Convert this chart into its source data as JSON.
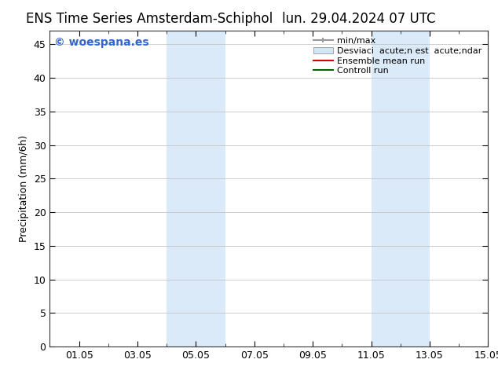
{
  "title_left": "ENS Time Series Amsterdam-Schiphol",
  "title_right": "lun. 29.04.2024 07 UTC",
  "ylabel": "Precipitation (mm/6h)",
  "xmin": 0.0,
  "xmax": 15.0,
  "ymin": 0,
  "ymax": 47,
  "yticks": [
    0,
    5,
    10,
    15,
    20,
    25,
    30,
    35,
    40,
    45
  ],
  "xtick_labels": [
    "01.05",
    "03.05",
    "05.05",
    "07.05",
    "09.05",
    "11.05",
    "13.05",
    "15.05"
  ],
  "xtick_positions": [
    1.0,
    3.0,
    5.0,
    7.0,
    9.0,
    11.0,
    13.0,
    15.0
  ],
  "shaded_bands": [
    {
      "xmin": 4.0,
      "xmax": 6.0
    },
    {
      "xmin": 11.0,
      "xmax": 13.0
    }
  ],
  "shaded_color": "#daeaf8",
  "background_color": "#ffffff",
  "plot_bg_color": "#ffffff",
  "watermark_text": "© woespana.es",
  "watermark_color": "#3366cc",
  "legend_line1_label": "min/max",
  "legend_line1_color": "#999999",
  "legend_box_label": "Desviaci  acute;n est  acute;ndar",
  "legend_box_facecolor": "#d0e8f8",
  "legend_line3_label": "Ensemble mean run",
  "legend_line3_color": "#dd0000",
  "legend_line4_label": "Controll run",
  "legend_line4_color": "#006600",
  "title_fontsize": 12,
  "label_fontsize": 9,
  "tick_fontsize": 9,
  "watermark_fontsize": 10,
  "legend_fontsize": 8
}
